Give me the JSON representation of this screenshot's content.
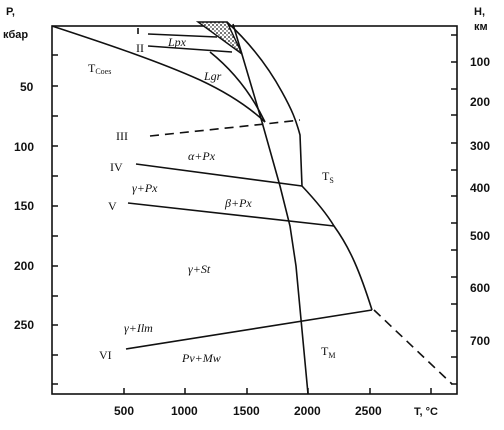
{
  "axes": {
    "left": {
      "title_line1": "P,",
      "title_line2": "кбар",
      "ticks": [
        "50",
        "100",
        "150",
        "200",
        "250"
      ]
    },
    "right": {
      "title_line1": "H,",
      "title_line2": "км",
      "ticks": [
        "100",
        "200",
        "300",
        "400",
        "500",
        "600",
        "700"
      ]
    },
    "bottom": {
      "title": "T, °C",
      "ticks": [
        "500",
        "1000",
        "1500",
        "2000",
        "2500"
      ]
    }
  },
  "labels": {
    "roman": [
      "II",
      "III",
      "IV",
      "V",
      "VI"
    ],
    "t_coes_main": "T",
    "t_coes_sub": "Coes",
    "t_s_main": "T",
    "t_s_sub": "S",
    "t_m_main": "T",
    "t_m_sub": "M",
    "lpx": "Lpx",
    "lgr": "Lgr",
    "alpha_px": "α+Px",
    "gamma_px": "γ+Px",
    "beta_px": "β+Px",
    "gamma_st": "γ+St",
    "gamma_ilm": "γ+Ilm",
    "pv_mw": "Pv+Mw"
  },
  "colors": {
    "line": "#111111",
    "background": "#ffffff"
  }
}
